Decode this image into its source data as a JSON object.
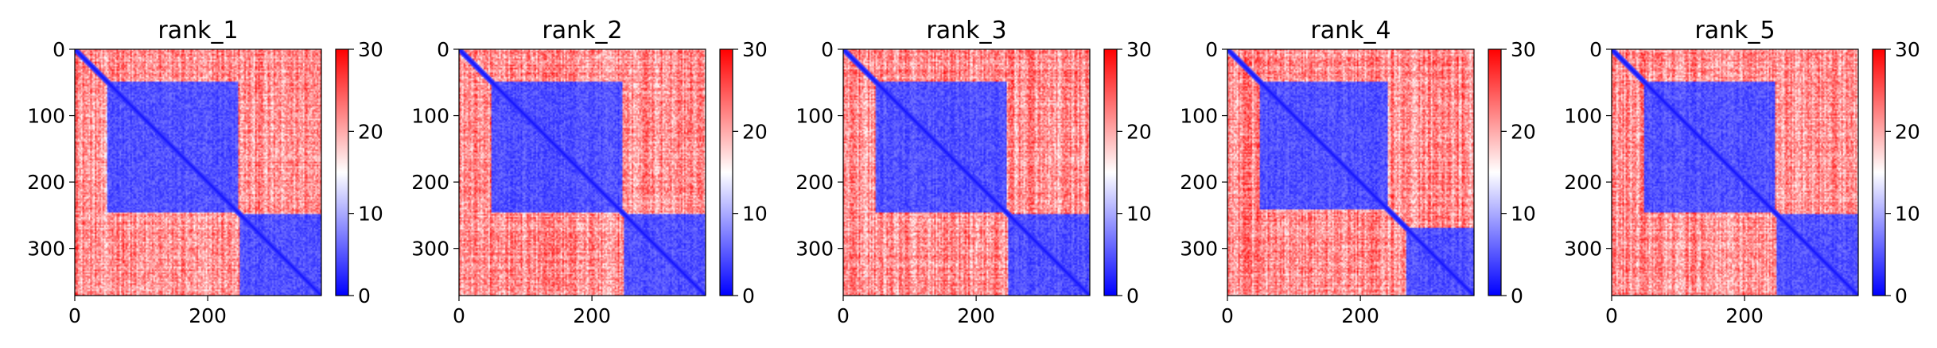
{
  "chart_data": [
    {
      "type": "heatmap",
      "title": "rank_1",
      "n": 371,
      "blocks": [
        [
          0,
          48,
          245
        ],
        [
          48,
          248,
          371
        ]
      ],
      "block_start_offset": 0,
      "xticks": [
        0,
        200
      ],
      "yticks": [
        0,
        100,
        200,
        300
      ],
      "colorbar": {
        "ticks": [
          0,
          10,
          20,
          30
        ],
        "range": [
          0,
          30
        ],
        "colormap": "bwr"
      }
    },
    {
      "type": "heatmap",
      "title": "rank_2",
      "n": 371,
      "blocks": [
        [
          0,
          48,
          245
        ],
        [
          48,
          248,
          371
        ]
      ],
      "colorbar": {
        "ticks": [
          0,
          10,
          20,
          30
        ],
        "range": [
          0,
          30
        ],
        "colormap": "bwr"
      },
      "xticks": [
        0,
        200
      ],
      "yticks": [
        0,
        100,
        200,
        300
      ]
    },
    {
      "type": "heatmap",
      "title": "rank_3",
      "n": 371,
      "blocks": [
        [
          0,
          48,
          245
        ],
        [
          48,
          248,
          371
        ]
      ],
      "colorbar": {
        "ticks": [
          0,
          10,
          20,
          30
        ],
        "range": [
          0,
          30
        ],
        "colormap": "bwr"
      },
      "xticks": [
        0,
        200
      ],
      "yticks": [
        0,
        100,
        200,
        300
      ]
    },
    {
      "type": "heatmap",
      "title": "rank_4",
      "n": 371,
      "blocks": [
        [
          0,
          48,
          240
        ],
        [
          48,
          270,
          371
        ]
      ],
      "colorbar": {
        "ticks": [
          0,
          10,
          20,
          30
        ],
        "range": [
          0,
          30
        ],
        "colormap": "bwr"
      },
      "xticks": [
        0,
        200
      ],
      "yticks": [
        0,
        100,
        200,
        300
      ]
    },
    {
      "type": "heatmap",
      "title": "rank_5",
      "n": 371,
      "blocks": [
        [
          0,
          48,
          245
        ],
        [
          48,
          248,
          371
        ]
      ],
      "colorbar": {
        "ticks": [
          0,
          10,
          20,
          30
        ],
        "range": [
          0,
          30
        ],
        "colormap": "bwr"
      },
      "xticks": [
        0,
        200
      ],
      "yticks": [
        0,
        100,
        200,
        300
      ]
    }
  ],
  "colors": {
    "low": "#0000ff",
    "mid": "#ffffff",
    "high": "#ff0000"
  }
}
